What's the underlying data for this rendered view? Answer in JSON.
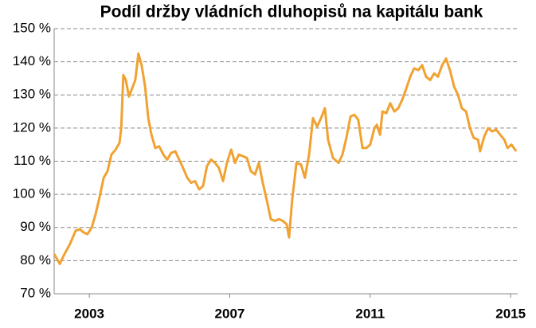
{
  "chart_data": {
    "type": "line",
    "title": "Podíl držby vládních dluhopisů na kapitálu bank",
    "x": [
      2002.0,
      2002.16,
      2002.27,
      2002.45,
      2002.61,
      2002.73,
      2002.84,
      2002.95,
      2003.07,
      2003.18,
      2003.29,
      2003.41,
      2003.52,
      2003.63,
      2003.75,
      2003.86,
      2003.91,
      2003.97,
      2004.04,
      2004.13,
      2004.22,
      2004.31,
      2004.4,
      2004.49,
      2004.59,
      2004.68,
      2004.77,
      2004.88,
      2004.99,
      2005.11,
      2005.22,
      2005.33,
      2005.45,
      2005.56,
      2005.67,
      2005.79,
      2005.9,
      2006.01,
      2006.13,
      2006.24,
      2006.35,
      2006.47,
      2006.58,
      2006.69,
      2006.81,
      2006.92,
      2007.04,
      2007.15,
      2007.26,
      2007.38,
      2007.49,
      2007.6,
      2007.72,
      2007.83,
      2007.94,
      2008.06,
      2008.17,
      2008.28,
      2008.4,
      2008.51,
      2008.62,
      2008.69,
      2008.78,
      2008.9,
      2009.03,
      2009.14,
      2009.26,
      2009.37,
      2009.49,
      2009.6,
      2009.71,
      2009.8,
      2009.94,
      2010.1,
      2010.21,
      2010.32,
      2010.44,
      2010.55,
      2010.66,
      2010.78,
      2010.89,
      2011.0,
      2011.12,
      2011.19,
      2011.28,
      2011.35,
      2011.46,
      2011.57,
      2011.69,
      2011.8,
      2011.91,
      2012.03,
      2012.14,
      2012.25,
      2012.37,
      2012.48,
      2012.59,
      2012.71,
      2012.82,
      2012.93,
      2013.05,
      2013.16,
      2013.27,
      2013.39,
      2013.5,
      2013.61,
      2013.73,
      2013.84,
      2013.95,
      2014.07,
      2014.13,
      2014.25,
      2014.36,
      2014.47,
      2014.59,
      2014.7,
      2014.82,
      2014.91,
      2015.02,
      2015.16
    ],
    "series": [
      {
        "name": "Podíl",
        "color": "#f0a232",
        "values": [
          82,
          79,
          81.5,
          85,
          89,
          89.5,
          88.5,
          88,
          90,
          94,
          99,
          105,
          107,
          112,
          113.5,
          115.5,
          120,
          136,
          134.5,
          129.5,
          132,
          134.5,
          142.5,
          139,
          132.5,
          123,
          118,
          114,
          114.5,
          112,
          110.5,
          112.5,
          113,
          110.5,
          108,
          105,
          103.5,
          104,
          101.5,
          102.5,
          108.5,
          110.5,
          109.5,
          108,
          104,
          109.5,
          113.5,
          109.5,
          112,
          111.5,
          111,
          107,
          106,
          109.5,
          103.5,
          98,
          92.5,
          92,
          92.5,
          92,
          91,
          87,
          98.5,
          109.5,
          109,
          105,
          112,
          123,
          120.5,
          123,
          126,
          116.5,
          111,
          109.5,
          112,
          117,
          123.5,
          124,
          122.5,
          114,
          114,
          115,
          120,
          121,
          118,
          125,
          124.5,
          127.5,
          125,
          126,
          128.5,
          132,
          135.5,
          138,
          137.5,
          139,
          135.5,
          134.5,
          136.5,
          135.5,
          139,
          141,
          137.5,
          132.5,
          130,
          126,
          125,
          120,
          117,
          116.5,
          113,
          117.5,
          120,
          119,
          119.5,
          118,
          116.5,
          114,
          115,
          113
        ]
      }
    ],
    "xlim": [
      2002.0,
      2015.2
    ],
    "xticks": [
      2003,
      2007,
      2011,
      2015
    ],
    "ylim": [
      70,
      150
    ],
    "yticks": [
      {
        "value": 70,
        "label": "70 %"
      },
      {
        "value": 80,
        "label": "80 %"
      },
      {
        "value": 90,
        "label": "90 %"
      },
      {
        "value": 100,
        "label": "100 %"
      },
      {
        "value": 110,
        "label": "110 %"
      },
      {
        "value": 120,
        "label": "120 %"
      },
      {
        "value": 130,
        "label": "130 %"
      },
      {
        "value": 140,
        "label": "140 %"
      },
      {
        "value": 150,
        "label": "150 %"
      }
    ],
    "grid": true
  }
}
